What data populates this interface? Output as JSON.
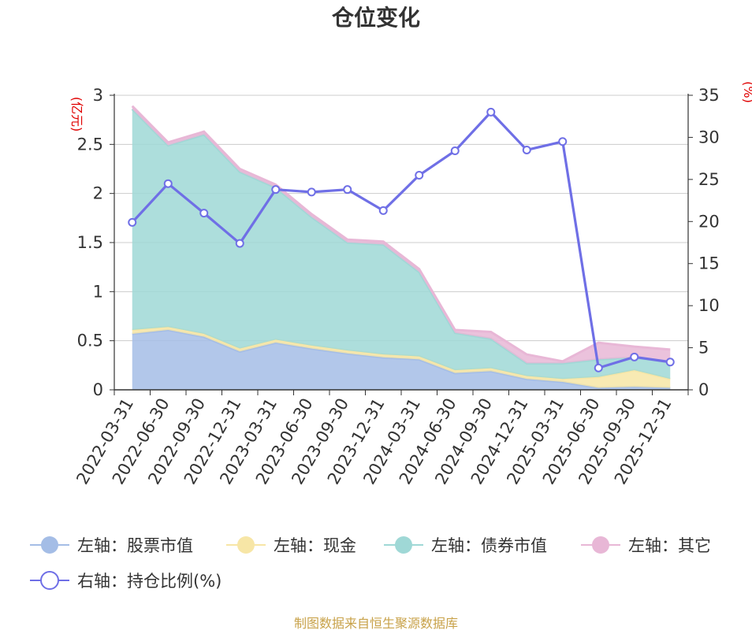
{
  "chart_data": {
    "type": "area",
    "title": "仓位变化",
    "left_unit": "(亿元)",
    "right_unit": "(%)",
    "categories": [
      "2022-03-31",
      "2022-06-30",
      "2022-09-30",
      "2022-12-31",
      "2023-03-31",
      "2023-06-30",
      "2023-09-30",
      "2023-12-31",
      "2024-03-31",
      "2024-06-30",
      "2024-09-30",
      "2024-12-31",
      "2025-03-31",
      "2025-06-30",
      "2025-09-30",
      "2025-12-31"
    ],
    "left_axis": {
      "min": 0,
      "max": 3,
      "ticks": [
        "0",
        "0.5",
        "1",
        "1.5",
        "2",
        "2.5",
        "3"
      ]
    },
    "right_axis": {
      "min": 0,
      "max": 35,
      "ticks": [
        "0",
        "5",
        "10",
        "15",
        "20",
        "25",
        "30",
        "35"
      ]
    },
    "stacked_series": [
      {
        "name": "左轴：股票市值",
        "color": "#a4bde6",
        "values": [
          0.57,
          0.61,
          0.54,
          0.39,
          0.48,
          0.42,
          0.37,
          0.33,
          0.31,
          0.17,
          0.19,
          0.11,
          0.08,
          0.02,
          0.03,
          0.02
        ]
      },
      {
        "name": "左轴：现金",
        "color": "#f7e6a6",
        "values": [
          0.04,
          0.03,
          0.03,
          0.03,
          0.03,
          0.03,
          0.03,
          0.03,
          0.03,
          0.03,
          0.03,
          0.03,
          0.03,
          0.11,
          0.17,
          0.09
        ]
      },
      {
        "name": "左轴：债券市值",
        "color": "#9fd8d6",
        "values": [
          2.25,
          1.85,
          2.03,
          1.8,
          1.55,
          1.31,
          1.1,
          1.12,
          0.86,
          0.38,
          0.3,
          0.13,
          0.16,
          0.18,
          0.13,
          0.17
        ]
      },
      {
        "name": "左轴：其它",
        "color": "#e8b7d6",
        "values": [
          0.03,
          0.03,
          0.03,
          0.03,
          0.03,
          0.03,
          0.03,
          0.03,
          0.03,
          0.03,
          0.07,
          0.09,
          0.02,
          0.17,
          0.11,
          0.13
        ]
      }
    ],
    "line_series": {
      "name": "右轴：持仓比例(%)",
      "color": "#6f6fe6",
      "values": [
        19.9,
        24.5,
        21.0,
        17.4,
        23.8,
        23.5,
        23.8,
        21.3,
        25.5,
        28.4,
        33.0,
        28.5,
        29.5,
        2.6,
        3.9,
        3.3
      ]
    },
    "legend_position": "bottom",
    "grid": true
  },
  "source_text": "制图数据来自恒生聚源数据库"
}
